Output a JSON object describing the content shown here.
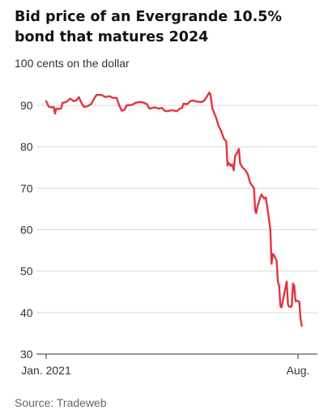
{
  "title": "Bid price of an Evergrande 10.5% bond that matures 2024",
  "subtitle": "100 cents on the dollar",
  "source": "Source: Tradeweb",
  "colors": {
    "line": "#e0363f",
    "grid": "#d9d9d9",
    "axis": "#333333"
  },
  "chart_data": {
    "type": "line",
    "title": "Bid price of an Evergrande 10.5% bond that matures 2024",
    "ylabel": "100 cents on the dollar",
    "xlabel": "",
    "ylim": [
      30,
      95
    ],
    "yticks": [
      30,
      40,
      50,
      60,
      70,
      80,
      90
    ],
    "xticks": [
      {
        "label": "Jan. 2021",
        "pos": 0.0
      },
      {
        "label": "Aug.",
        "pos": 1.0
      }
    ],
    "grid": true,
    "series": [
      {
        "points": [
          [
            0.0,
            91.0
          ],
          [
            0.01,
            89.7
          ],
          [
            0.02,
            89.5
          ],
          [
            0.03,
            89.6
          ],
          [
            0.035,
            88.0
          ],
          [
            0.04,
            89.2
          ],
          [
            0.05,
            89.1
          ],
          [
            0.06,
            89.3
          ],
          [
            0.065,
            90.6
          ],
          [
            0.08,
            90.8
          ],
          [
            0.095,
            91.6
          ],
          [
            0.11,
            91.0
          ],
          [
            0.12,
            91.2
          ],
          [
            0.13,
            92.0
          ],
          [
            0.14,
            90.6
          ],
          [
            0.15,
            89.6
          ],
          [
            0.165,
            89.8
          ],
          [
            0.18,
            90.4
          ],
          [
            0.19,
            91.6
          ],
          [
            0.2,
            92.5
          ],
          [
            0.22,
            92.5
          ],
          [
            0.235,
            92.0
          ],
          [
            0.25,
            92.2
          ],
          [
            0.265,
            91.8
          ],
          [
            0.28,
            91.8
          ],
          [
            0.29,
            90.0
          ],
          [
            0.3,
            88.7
          ],
          [
            0.31,
            88.9
          ],
          [
            0.32,
            90.0
          ],
          [
            0.34,
            90.1
          ],
          [
            0.355,
            90.6
          ],
          [
            0.37,
            90.8
          ],
          [
            0.385,
            90.7
          ],
          [
            0.4,
            90.3
          ],
          [
            0.41,
            89.2
          ],
          [
            0.43,
            89.5
          ],
          [
            0.45,
            89.2
          ],
          [
            0.46,
            89.4
          ],
          [
            0.47,
            88.7
          ],
          [
            0.48,
            88.6
          ],
          [
            0.5,
            88.8
          ],
          [
            0.52,
            88.6
          ],
          [
            0.53,
            89.2
          ],
          [
            0.54,
            89.4
          ],
          [
            0.545,
            90.4
          ],
          [
            0.56,
            90.3
          ],
          [
            0.57,
            90.9
          ],
          [
            0.58,
            91.2
          ],
          [
            0.6,
            90.9
          ],
          [
            0.615,
            90.8
          ],
          [
            0.625,
            91.0
          ],
          [
            0.635,
            91.8
          ],
          [
            0.648,
            93.1
          ],
          [
            0.652,
            92.6
          ],
          [
            0.66,
            89.2
          ],
          [
            0.675,
            87.0
          ],
          [
            0.685,
            85.0
          ],
          [
            0.695,
            83.8
          ],
          [
            0.705,
            82.0
          ],
          [
            0.715,
            81.3
          ],
          [
            0.72,
            75.5
          ],
          [
            0.725,
            76.1
          ],
          [
            0.732,
            75.4
          ],
          [
            0.738,
            75.8
          ],
          [
            0.745,
            74.3
          ],
          [
            0.75,
            77.8
          ],
          [
            0.755,
            78.2
          ],
          [
            0.765,
            79.5
          ],
          [
            0.77,
            76.0
          ],
          [
            0.78,
            75.0
          ],
          [
            0.79,
            74.4
          ],
          [
            0.8,
            73.5
          ],
          [
            0.81,
            71.3
          ],
          [
            0.82,
            70.5
          ],
          [
            0.825,
            70.0
          ],
          [
            0.83,
            64.5
          ],
          [
            0.834,
            64.0
          ],
          [
            0.84,
            65.8
          ],
          [
            0.85,
            67.8
          ],
          [
            0.855,
            68.5
          ],
          [
            0.865,
            67.5
          ],
          [
            0.872,
            67.8
          ],
          [
            0.88,
            64.5
          ],
          [
            0.89,
            60.0
          ],
          [
            0.895,
            51.8
          ],
          [
            0.9,
            54.2
          ],
          [
            0.905,
            53.8
          ],
          [
            0.915,
            52.5
          ],
          [
            0.92,
            47.5
          ],
          [
            0.925,
            46.5
          ],
          [
            0.93,
            41.5
          ],
          [
            0.935,
            41.3
          ],
          [
            0.945,
            44.5
          ],
          [
            0.955,
            47.5
          ],
          [
            0.96,
            42.0
          ],
          [
            0.965,
            41.4
          ],
          [
            0.975,
            41.5
          ],
          [
            0.98,
            47.0
          ],
          [
            0.985,
            46.5
          ],
          [
            0.99,
            42.8
          ],
          [
            1.0,
            42.8
          ],
          [
            1.005,
            42.6
          ],
          [
            1.01,
            38.5
          ],
          [
            1.015,
            36.8
          ]
        ]
      }
    ]
  }
}
